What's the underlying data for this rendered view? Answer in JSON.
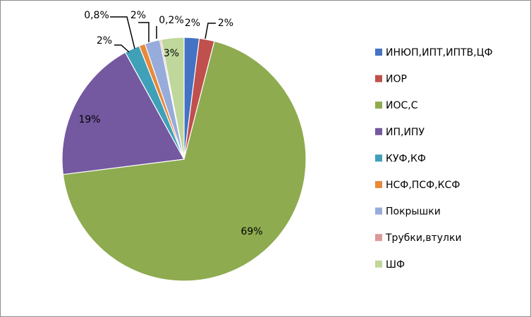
{
  "chart_data": {
    "type": "pie",
    "title": "",
    "legend_position": "right",
    "slices": [
      {
        "name": "ИНЮП,ИПТ,ИПТВ,ЦФ",
        "value": 2.0,
        "label": "2%",
        "color": "#4472C4"
      },
      {
        "name": "ИОР",
        "value": 2.0,
        "label": "2%",
        "color": "#C0504D"
      },
      {
        "name": "ИОС,С",
        "value": 69.0,
        "label": "69%",
        "color": "#8EAB4F"
      },
      {
        "name": "ИП,ИПУ",
        "value": 19.0,
        "label": "19%",
        "color": "#7458A0"
      },
      {
        "name": "КУФ,КФ",
        "value": 2.0,
        "label": "2%",
        "color": "#3FA0B8"
      },
      {
        "name": "НСФ,ПСФ,КСФ",
        "value": 0.8,
        "label": "0,8%",
        "color": "#E8893A"
      },
      {
        "name": "Покрышки",
        "value": 2.0,
        "label": "2%",
        "color": "#97ACDA"
      },
      {
        "name": "Трубки,втулки",
        "value": 0.2,
        "label": "0,2%",
        "color": "#DA9A9A"
      },
      {
        "name": "ШФ",
        "value": 3.0,
        "label": "3%",
        "color": "#BFD79B"
      }
    ]
  }
}
